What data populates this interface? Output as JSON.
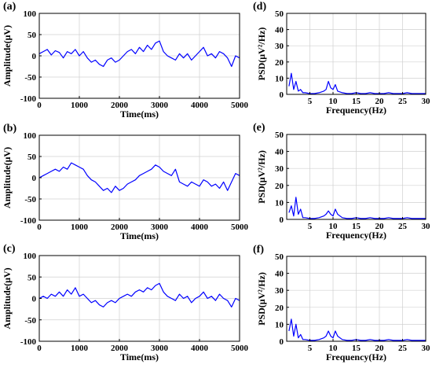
{
  "colors": {
    "trace": "#0000ff",
    "axis": "#000000",
    "grid": "#d0d0d0",
    "background": "#ffffff"
  },
  "chart_data": [
    {
      "panel": "(a)",
      "type": "line",
      "xlabel": "Time(ms)",
      "ylabel": "Amplitude(μV)",
      "xlim": [
        0,
        5000
      ],
      "ylim": [
        -100,
        100
      ],
      "xticks": [
        0,
        1000,
        2000,
        3000,
        4000,
        5000
      ],
      "yticks": [
        -100,
        -50,
        0,
        50,
        100
      ],
      "grid": true,
      "series": [
        {
          "x": [
            0,
            100,
            200,
            300,
            400,
            500,
            600,
            700,
            800,
            900,
            1000,
            1100,
            1200,
            1300,
            1400,
            1500,
            1600,
            1700,
            1800,
            1900,
            2000,
            2100,
            2200,
            2300,
            2400,
            2500,
            2600,
            2700,
            2800,
            2900,
            3000,
            3100,
            3200,
            3300,
            3400,
            3500,
            3600,
            3700,
            3800,
            3900,
            4000,
            4100,
            4200,
            4300,
            4400,
            4500,
            4600,
            4700,
            4800,
            4900,
            5000
          ],
          "y": [
            5,
            10,
            15,
            2,
            12,
            8,
            -5,
            10,
            5,
            15,
            0,
            10,
            -5,
            -15,
            -10,
            -20,
            -25,
            -10,
            -5,
            -15,
            -10,
            0,
            10,
            15,
            5,
            20,
            10,
            25,
            15,
            30,
            35,
            10,
            0,
            -5,
            -10,
            5,
            -5,
            5,
            -10,
            0,
            10,
            20,
            0,
            5,
            -5,
            10,
            5,
            -5,
            -25,
            0,
            -5
          ]
        }
      ]
    },
    {
      "panel": "(d)",
      "type": "line",
      "xlabel": "Frequency(Hz)",
      "ylabel": "PSD(μV²/Hz)",
      "xlim": [
        0,
        30
      ],
      "ylim": [
        0,
        50
      ],
      "xticks": [
        5,
        10,
        15,
        20,
        25,
        30
      ],
      "yticks": [
        0,
        10,
        20,
        30,
        40,
        50
      ],
      "grid": true,
      "series": [
        {
          "x": [
            0.5,
            1,
            1.5,
            2,
            2.5,
            3,
            3.5,
            4,
            5,
            6,
            7,
            8,
            8.5,
            9,
            9.5,
            10,
            10.5,
            11,
            12,
            13,
            14,
            15,
            16,
            17,
            18,
            19,
            20,
            21,
            22,
            23,
            24,
            25,
            26,
            27,
            28,
            29,
            30
          ],
          "y": [
            5,
            13,
            3,
            8,
            2,
            3,
            1,
            1,
            0.5,
            0.5,
            1,
            2,
            3,
            8,
            4,
            3,
            6,
            2,
            1,
            0.5,
            0.5,
            1,
            0.5,
            0.5,
            1,
            0.5,
            0.5,
            0.5,
            1,
            0.5,
            0.5,
            0.5,
            1,
            0.5,
            0.5,
            0.5,
            0.5
          ]
        }
      ]
    },
    {
      "panel": "(b)",
      "type": "line",
      "xlabel": "Time(ms)",
      "ylabel": "Amplitude(μV)",
      "xlim": [
        0,
        5000
      ],
      "ylim": [
        -100,
        100
      ],
      "xticks": [
        0,
        1000,
        2000,
        3000,
        4000,
        5000
      ],
      "yticks": [
        -100,
        -50,
        0,
        50,
        100
      ],
      "grid": true,
      "series": [
        {
          "x": [
            0,
            100,
            200,
            300,
            400,
            500,
            600,
            700,
            800,
            900,
            1000,
            1100,
            1200,
            1300,
            1400,
            1500,
            1600,
            1700,
            1800,
            1900,
            2000,
            2100,
            2200,
            2300,
            2400,
            2500,
            2600,
            2700,
            2800,
            2900,
            3000,
            3100,
            3200,
            3300,
            3400,
            3500,
            3600,
            3700,
            3800,
            3900,
            4000,
            4100,
            4200,
            4300,
            4400,
            4500,
            4600,
            4700,
            4800,
            4900,
            5000
          ],
          "y": [
            0,
            5,
            10,
            15,
            20,
            15,
            25,
            20,
            35,
            30,
            25,
            20,
            5,
            -5,
            -10,
            -20,
            -30,
            -25,
            -35,
            -20,
            -30,
            -25,
            -15,
            -10,
            -5,
            5,
            10,
            15,
            20,
            30,
            25,
            15,
            10,
            5,
            20,
            -10,
            -15,
            -20,
            -10,
            -15,
            -20,
            -5,
            -10,
            -20,
            -15,
            -25,
            -10,
            -30,
            -10,
            10,
            5
          ]
        }
      ]
    },
    {
      "panel": "(e)",
      "type": "line",
      "xlabel": "Frequency(Hz)",
      "ylabel": "PSD(μV²/Hz)",
      "xlim": [
        0,
        30
      ],
      "ylim": [
        0,
        50
      ],
      "xticks": [
        5,
        10,
        15,
        20,
        25,
        30
      ],
      "yticks": [
        0,
        10,
        20,
        30,
        40,
        50
      ],
      "grid": true,
      "series": [
        {
          "x": [
            0.5,
            1,
            1.5,
            2,
            2.5,
            3,
            3.5,
            4,
            5,
            6,
            7,
            8,
            8.5,
            9,
            9.5,
            10,
            10.5,
            11,
            12,
            13,
            14,
            15,
            16,
            17,
            18,
            19,
            20,
            21,
            22,
            23,
            24,
            25,
            26,
            27,
            28,
            29,
            30
          ],
          "y": [
            4,
            8,
            2,
            13,
            3,
            6,
            1,
            1,
            0.5,
            0.5,
            1,
            2,
            3,
            5,
            3,
            2,
            6,
            3,
            1,
            0.5,
            0.5,
            1,
            0.5,
            0.5,
            1,
            0.5,
            0.5,
            0.5,
            1,
            0.5,
            0.5,
            0.5,
            1,
            0.5,
            0.5,
            0.5,
            0.5
          ]
        }
      ]
    },
    {
      "panel": "(c)",
      "type": "line",
      "xlabel": "Time(ms)",
      "ylabel": "Amplitude(μV)",
      "xlim": [
        0,
        5000
      ],
      "ylim": [
        -100,
        100
      ],
      "xticks": [
        0,
        1000,
        2000,
        3000,
        4000,
        5000
      ],
      "yticks": [
        -100,
        -50,
        0,
        50,
        100
      ],
      "grid": true,
      "series": [
        {
          "x": [
            0,
            100,
            200,
            300,
            400,
            500,
            600,
            700,
            800,
            900,
            1000,
            1100,
            1200,
            1300,
            1400,
            1500,
            1600,
            1700,
            1800,
            1900,
            2000,
            2100,
            2200,
            2300,
            2400,
            2500,
            2600,
            2700,
            2800,
            2900,
            3000,
            3100,
            3200,
            3300,
            3400,
            3500,
            3600,
            3700,
            3800,
            3900,
            4000,
            4100,
            4200,
            4300,
            4400,
            4500,
            4600,
            4700,
            4800,
            4900,
            5000
          ],
          "y": [
            0,
            5,
            0,
            10,
            5,
            15,
            5,
            20,
            10,
            25,
            5,
            10,
            0,
            -10,
            -5,
            -15,
            -20,
            -10,
            -5,
            -10,
            0,
            5,
            10,
            5,
            15,
            20,
            15,
            25,
            20,
            30,
            35,
            15,
            5,
            0,
            -5,
            10,
            0,
            5,
            -10,
            0,
            5,
            15,
            0,
            5,
            -5,
            10,
            0,
            -5,
            -20,
            0,
            -5
          ]
        }
      ]
    },
    {
      "panel": "(f)",
      "type": "line",
      "xlabel": "Frequency(Hz)",
      "ylabel": "PSD(μV²/Hz)",
      "xlim": [
        0,
        30
      ],
      "ylim": [
        0,
        50
      ],
      "xticks": [
        5,
        10,
        15,
        20,
        25,
        30
      ],
      "yticks": [
        0,
        10,
        20,
        30,
        40,
        50
      ],
      "grid": true,
      "series": [
        {
          "x": [
            0.5,
            1,
            1.5,
            2,
            2.5,
            3,
            3.5,
            4,
            5,
            6,
            7,
            8,
            8.5,
            9,
            9.5,
            10,
            10.5,
            11,
            12,
            13,
            14,
            15,
            16,
            17,
            18,
            19,
            20,
            21,
            22,
            23,
            24,
            25,
            26,
            27,
            28,
            29,
            30
          ],
          "y": [
            6,
            13,
            3,
            10,
            2,
            4,
            1,
            1,
            0.5,
            0.5,
            1,
            2,
            3,
            6,
            3,
            2,
            6,
            3,
            1,
            0.5,
            0.5,
            1,
            0.5,
            0.5,
            1,
            0.5,
            0.5,
            0.5,
            1,
            0.5,
            0.5,
            0.5,
            1,
            0.5,
            0.5,
            0.5,
            0.5
          ]
        }
      ]
    }
  ]
}
